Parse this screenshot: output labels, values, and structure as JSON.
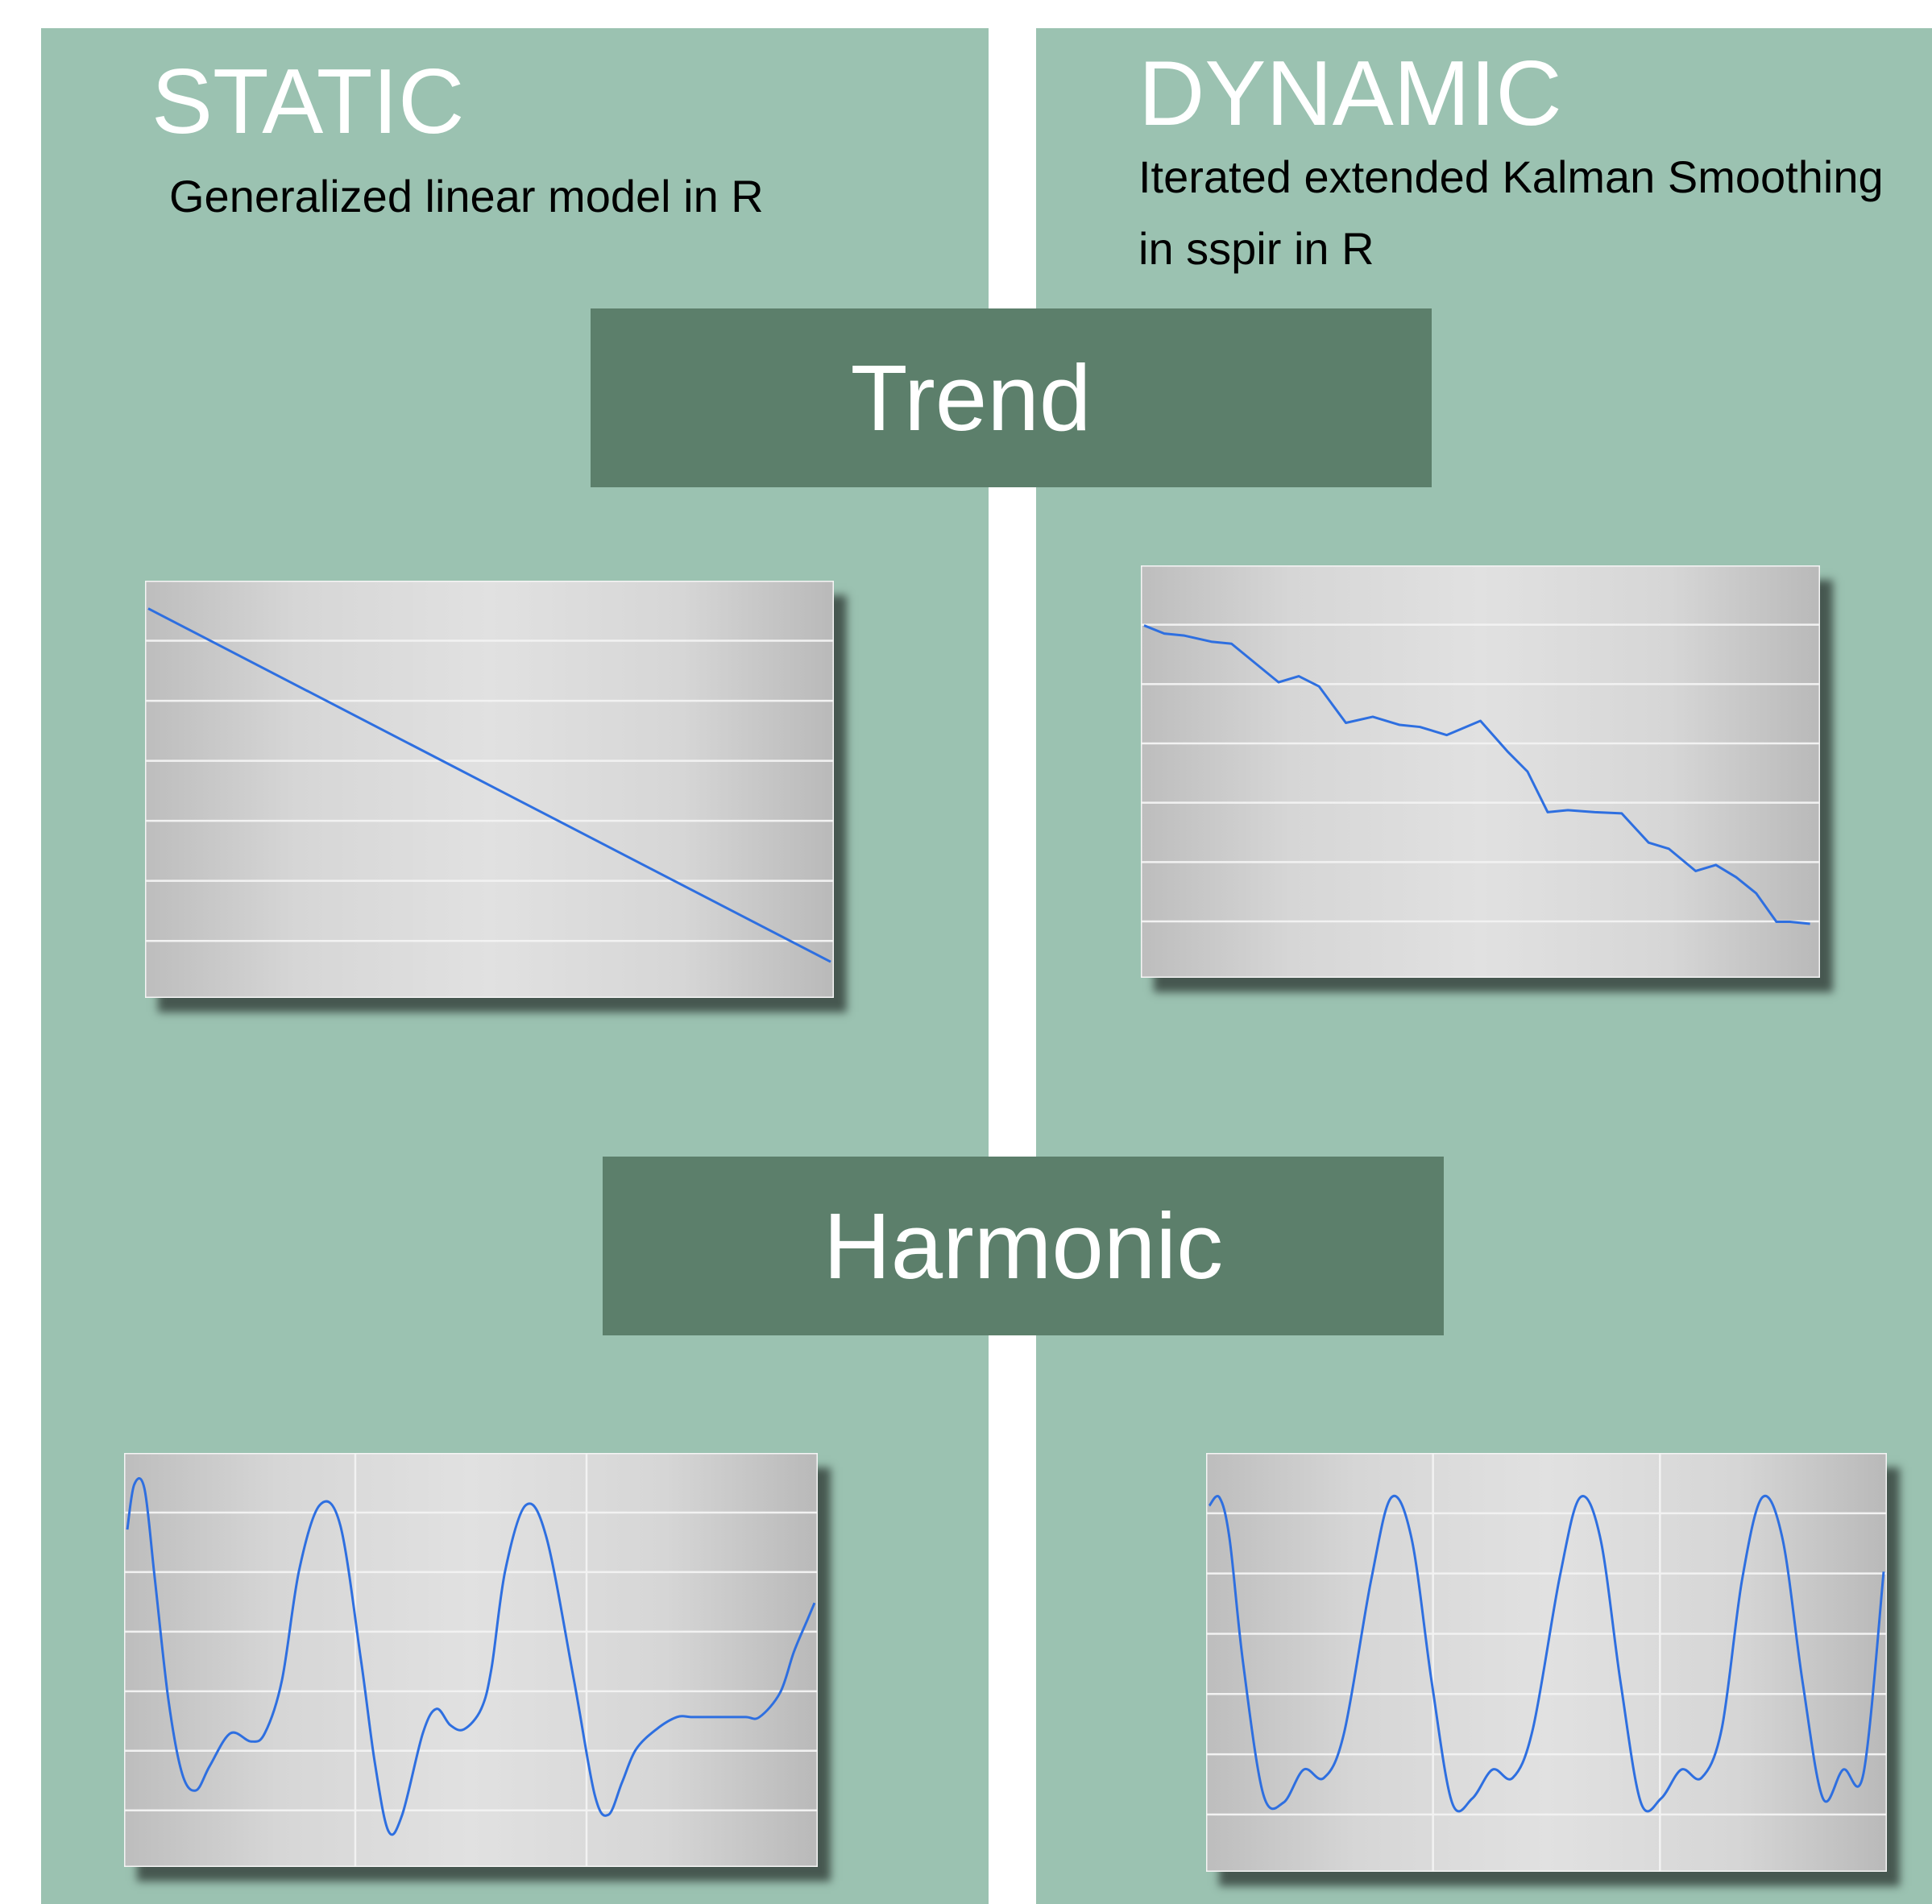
{
  "colors": {
    "panel": "#9bc2b1",
    "banner": "#5c7f6b",
    "background": "#ffffff",
    "line": "#2e6fe0"
  },
  "static": {
    "heading": "STATIC",
    "subtitle": "Generalized linear model in R"
  },
  "dynamic": {
    "heading": "DYNAMIC",
    "subtitle_line1": "Iterated extended Kalman Smoothing",
    "subtitle_line2": "in sspir in R"
  },
  "banners": {
    "trend": "Trend",
    "harmonic": "Harmonic"
  },
  "chart_data": [
    {
      "id": "static-trend",
      "type": "line",
      "grid": "horizontal",
      "xlim": [
        0,
        1
      ],
      "ylim": [
        0,
        1
      ],
      "x": [
        0,
        1
      ],
      "y": [
        0.94,
        0.08
      ]
    },
    {
      "id": "dynamic-trend",
      "type": "line",
      "grid": "horizontal",
      "xlim": [
        0,
        1
      ],
      "ylim": [
        0,
        1
      ],
      "x": [
        0.0,
        0.03,
        0.06,
        0.1,
        0.13,
        0.2,
        0.23,
        0.26,
        0.3,
        0.34,
        0.38,
        0.41,
        0.45,
        0.5,
        0.54,
        0.57,
        0.6,
        0.63,
        0.67,
        0.71,
        0.75,
        0.78,
        0.82,
        0.85,
        0.88,
        0.91,
        0.94,
        0.96,
        0.99
      ],
      "y": [
        0.86,
        0.84,
        0.835,
        0.82,
        0.815,
        0.72,
        0.735,
        0.71,
        0.62,
        0.635,
        0.615,
        0.61,
        0.59,
        0.625,
        0.55,
        0.5,
        0.4,
        0.405,
        0.4,
        0.397,
        0.325,
        0.31,
        0.255,
        0.27,
        0.24,
        0.2,
        0.13,
        0.13,
        0.125
      ]
    },
    {
      "id": "static-harmonic",
      "type": "line",
      "grid": "both",
      "xlim": [
        0,
        1
      ],
      "ylim": [
        0,
        1
      ],
      "x": [
        0.0,
        0.01,
        0.025,
        0.04,
        0.06,
        0.08,
        0.1,
        0.12,
        0.15,
        0.18,
        0.2,
        0.225,
        0.25,
        0.28,
        0.31,
        0.34,
        0.36,
        0.38,
        0.4,
        0.43,
        0.45,
        0.47,
        0.49,
        0.515,
        0.53,
        0.55,
        0.58,
        0.61,
        0.65,
        0.68,
        0.7,
        0.72,
        0.74,
        0.77,
        0.8,
        0.82,
        0.84,
        0.87,
        0.9,
        0.92,
        0.95,
        0.97,
        0.99,
        1.0
      ],
      "y": [
        0.82,
        0.93,
        0.92,
        0.7,
        0.4,
        0.22,
        0.18,
        0.24,
        0.32,
        0.3,
        0.32,
        0.45,
        0.72,
        0.88,
        0.83,
        0.5,
        0.25,
        0.08,
        0.12,
        0.32,
        0.38,
        0.34,
        0.33,
        0.38,
        0.48,
        0.72,
        0.88,
        0.8,
        0.45,
        0.17,
        0.12,
        0.2,
        0.28,
        0.33,
        0.36,
        0.36,
        0.36,
        0.36,
        0.36,
        0.36,
        0.42,
        0.52,
        0.6,
        0.64
      ]
    },
    {
      "id": "dynamic-harmonic",
      "type": "line",
      "grid": "both",
      "xlim": [
        0,
        1
      ],
      "ylim": [
        0,
        1
      ],
      "x": [
        0.0,
        0.015,
        0.03,
        0.05,
        0.08,
        0.11,
        0.14,
        0.17,
        0.2,
        0.24,
        0.27,
        0.3,
        0.33,
        0.36,
        0.39,
        0.42,
        0.45,
        0.48,
        0.52,
        0.55,
        0.58,
        0.61,
        0.64,
        0.67,
        0.7,
        0.73,
        0.76,
        0.79,
        0.82,
        0.85,
        0.88,
        0.91,
        0.94,
        0.97,
        1.0
      ],
      "y": [
        0.88,
        0.9,
        0.8,
        0.5,
        0.18,
        0.16,
        0.24,
        0.22,
        0.33,
        0.7,
        0.9,
        0.8,
        0.45,
        0.16,
        0.17,
        0.24,
        0.22,
        0.34,
        0.71,
        0.9,
        0.8,
        0.45,
        0.16,
        0.17,
        0.24,
        0.22,
        0.34,
        0.7,
        0.9,
        0.8,
        0.45,
        0.17,
        0.24,
        0.23,
        0.72
      ]
    }
  ]
}
